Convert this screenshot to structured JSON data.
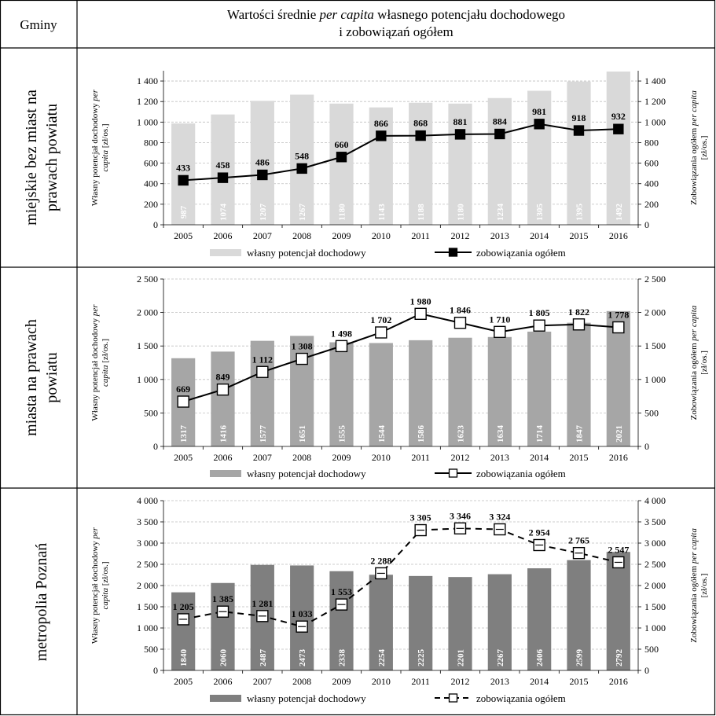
{
  "header": {
    "col1": "Gminy",
    "title_line1_prefix": "Wartości średnie ",
    "title_line1_italic": "per capita",
    "title_line1_suffix": " własnego potencjału dochodowego",
    "title_line2": "i zobowiązań ogółem"
  },
  "colors": {
    "bars": [
      "#d9d9d9",
      "#a6a6a6",
      "#7f7f7f"
    ],
    "line": "#000000",
    "grid": "#bfbfbf"
  },
  "chart_data": [
    {
      "type": "bar",
      "row_label_lines": [
        "miejskie bez miast na",
        "prawach powiatu"
      ],
      "ylabel_left_lines": [
        [
          "Własny potencjał dochodowy ",
          "per"
        ],
        [
          "capita",
          " [zł/os.]"
        ]
      ],
      "ylabel_right_lines": [
        [
          "Zobowiązania ogółem ",
          "per capita"
        ],
        [
          "[zł/os.]"
        ]
      ],
      "categories": [
        "2005",
        "2006",
        "2007",
        "2008",
        "2009",
        "2010",
        "2011",
        "2012",
        "2013",
        "2014",
        "2015",
        "2016"
      ],
      "ylim": [
        0,
        1500
      ],
      "yticks": [
        0,
        200,
        400,
        600,
        800,
        1000,
        1200,
        1400
      ],
      "ytick_labels": [
        "0",
        "200",
        "400",
        "600",
        "800",
        "1 000",
        "1 200",
        "1 400"
      ],
      "grid": true,
      "legend_position": "bottom",
      "line_style": "solid",
      "marker": "filled-square",
      "series": [
        {
          "name": "własny potencjał dochodowy",
          "kind": "bar",
          "values": [
            987,
            1074,
            1207,
            1267,
            1180,
            1143,
            1188,
            1180,
            1234,
            1305,
            1395,
            1492
          ],
          "labels": [
            "987",
            "1074",
            "1207",
            "1267",
            "1180",
            "1143",
            "1188",
            "1180",
            "1234",
            "1305",
            "1395",
            "1492"
          ]
        },
        {
          "name": "zobowiązania ogółem",
          "kind": "line",
          "values": [
            433,
            458,
            486,
            548,
            660,
            866,
            868,
            881,
            884,
            981,
            918,
            932
          ],
          "labels": [
            "433",
            "458",
            "486",
            "548",
            "660",
            "866",
            "868",
            "881",
            "884",
            "981",
            "918",
            "932"
          ]
        }
      ]
    },
    {
      "type": "bar",
      "row_label_lines": [
        "miasta na prawach",
        "powiatu"
      ],
      "ylabel_left_lines": [
        [
          "Własny potencjał dochodowy ",
          "per"
        ],
        [
          "capita",
          " [zł/os.]"
        ]
      ],
      "ylabel_right_lines": [
        [
          "Zobowiązania ogółem ",
          "per capita"
        ],
        [
          "[zł/os.]"
        ]
      ],
      "categories": [
        "2005",
        "2006",
        "2007",
        "2008",
        "2009",
        "2010",
        "2011",
        "2012",
        "2013",
        "2014",
        "2015",
        "2016"
      ],
      "ylim": [
        0,
        2500
      ],
      "yticks": [
        0,
        500,
        1000,
        1500,
        2000,
        2500
      ],
      "ytick_labels": [
        "0",
        "500",
        "1 000",
        "1 500",
        "2 000",
        "2 500"
      ],
      "grid": true,
      "legend_position": "bottom",
      "line_style": "solid",
      "marker": "open-square",
      "series": [
        {
          "name": "własny potencjał dochodowy",
          "kind": "bar",
          "values": [
            1317,
            1416,
            1577,
            1651,
            1555,
            1544,
            1586,
            1623,
            1634,
            1714,
            1847,
            2021
          ],
          "labels": [
            "1317",
            "1416",
            "1577",
            "1651",
            "1555",
            "1544",
            "1586",
            "1623",
            "1634",
            "1714",
            "1847",
            "2021"
          ]
        },
        {
          "name": "zobowiązania ogółem",
          "kind": "line",
          "values": [
            669,
            849,
            1112,
            1308,
            1498,
            1702,
            1980,
            1846,
            1710,
            1805,
            1822,
            1778
          ],
          "labels": [
            "669",
            "849",
            "1 112",
            "1 308",
            "1 498",
            "1 702",
            "1 980",
            "1 846",
            "1 710",
            "1 805",
            "1 822",
            "1 778"
          ]
        }
      ]
    },
    {
      "type": "bar",
      "row_label_lines": [
        "metropolia Poznań"
      ],
      "ylabel_left_lines": [
        [
          "Własny potencjał dochodowy ",
          "per"
        ],
        [
          "capita",
          " [zł/os.]"
        ]
      ],
      "ylabel_right_lines": [
        [
          "Zobowiązania ogółem ",
          "per capita"
        ],
        [
          "[zł/os.]"
        ]
      ],
      "categories": [
        "2005",
        "2006",
        "2007",
        "2008",
        "2009",
        "2010",
        "2011",
        "2012",
        "2013",
        "2014",
        "2015",
        "2016"
      ],
      "ylim": [
        0,
        4000
      ],
      "yticks": [
        0,
        500,
        1000,
        1500,
        2000,
        2500,
        3000,
        3500,
        4000
      ],
      "ytick_labels": [
        "0",
        "500",
        "1 000",
        "1 500",
        "2 000",
        "2 500",
        "3 000",
        "3 500",
        "4 000"
      ],
      "grid": true,
      "legend_position": "bottom",
      "line_style": "dashed",
      "marker": "open-square",
      "series": [
        {
          "name": "własny potencjał dochodowy",
          "kind": "bar",
          "values": [
            1840,
            2060,
            2487,
            2473,
            2338,
            2254,
            2225,
            2201,
            2267,
            2406,
            2599,
            2792
          ],
          "labels": [
            "1840",
            "2060",
            "2487",
            "2473",
            "2338",
            "2254",
            "2225",
            "2201",
            "2267",
            "2406",
            "2599",
            "2792"
          ]
        },
        {
          "name": "zobowiązania ogółem",
          "kind": "line",
          "values": [
            1205,
            1385,
            1281,
            1033,
            1553,
            2288,
            3305,
            3346,
            3324,
            2954,
            2765,
            2547
          ],
          "labels": [
            "1 205",
            "1 385",
            "1 281",
            "1 033",
            "1 553",
            "2 288",
            "3 305",
            "3 346",
            "3 324",
            "2 954",
            "2 765",
            "2 547"
          ]
        }
      ]
    }
  ]
}
